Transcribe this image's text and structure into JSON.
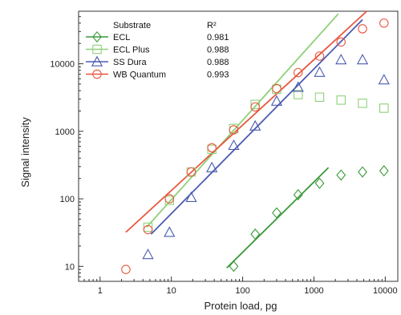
{
  "chart_data": {
    "type": "scatter",
    "xlabel": "Protein load, pg",
    "ylabel": "Signal intensity",
    "xscale": "log",
    "yscale": "log",
    "xlim": [
      0.5,
      15000
    ],
    "ylim": [
      6,
      60000
    ],
    "x_ticks": [
      1,
      10,
      100,
      1000,
      10000
    ],
    "x_tick_labels": [
      "1",
      "10",
      "100",
      "1000",
      "10000"
    ],
    "y_ticks": [
      10,
      100,
      1000,
      10000
    ],
    "y_tick_labels": [
      "10",
      "100",
      "1000",
      "10000"
    ],
    "legend_placement": "top-left",
    "legend_header": {
      "substrate": "Substrate",
      "r2": "R²"
    },
    "series": [
      {
        "name": "ECL",
        "r2": "0.981",
        "marker": "diamond",
        "color": "#3a9a3a",
        "points": [
          [
            75,
            10
          ],
          [
            150,
            30
          ],
          [
            300,
            62
          ],
          [
            600,
            115
          ],
          [
            1200,
            170
          ],
          [
            2400,
            225
          ],
          [
            4800,
            250
          ],
          [
            9600,
            260
          ]
        ],
        "fit": [
          [
            60,
            9.5
          ],
          [
            1600,
            290
          ]
        ]
      },
      {
        "name": "ECL Plus",
        "r2": "0.988",
        "marker": "square",
        "color": "#8fd07a",
        "points": [
          [
            4.7,
            38
          ],
          [
            9.4,
            95
          ],
          [
            19,
            250
          ],
          [
            37,
            540
          ],
          [
            75,
            1100
          ],
          [
            150,
            2500
          ],
          [
            300,
            4200
          ],
          [
            600,
            3500
          ],
          [
            1200,
            3200
          ],
          [
            2400,
            2900
          ],
          [
            4800,
            2600
          ],
          [
            9600,
            2200
          ]
        ],
        "fit": [
          [
            4.5,
            38
          ],
          [
            2200,
            55000
          ]
        ]
      },
      {
        "name": "SS Dura",
        "r2": "0.988",
        "marker": "triangle",
        "color": "#4a5bb0",
        "points": [
          [
            4.7,
            15
          ],
          [
            9.4,
            32
          ],
          [
            19,
            105
          ],
          [
            37,
            290
          ],
          [
            75,
            620
          ],
          [
            150,
            1200
          ],
          [
            300,
            2800
          ],
          [
            600,
            4500
          ],
          [
            1200,
            7500
          ],
          [
            2400,
            11500
          ],
          [
            4800,
            11500
          ],
          [
            9600,
            5800
          ]
        ],
        "fit": [
          [
            5.2,
            30
          ],
          [
            4800,
            45000
          ]
        ]
      },
      {
        "name": "WB Quantum",
        "r2": "0.993",
        "marker": "circle",
        "color": "#e8573f",
        "points": [
          [
            2.3,
            9
          ],
          [
            4.7,
            35
          ],
          [
            9.4,
            100
          ],
          [
            19,
            250
          ],
          [
            37,
            570
          ],
          [
            75,
            1050
          ],
          [
            150,
            2300
          ],
          [
            300,
            4300
          ],
          [
            600,
            7400
          ],
          [
            1200,
            13000
          ],
          [
            2400,
            21000
          ],
          [
            4800,
            33000
          ],
          [
            9600,
            40000
          ]
        ],
        "fit": [
          [
            2.3,
            32
          ],
          [
            5500,
            60000
          ]
        ]
      }
    ]
  }
}
